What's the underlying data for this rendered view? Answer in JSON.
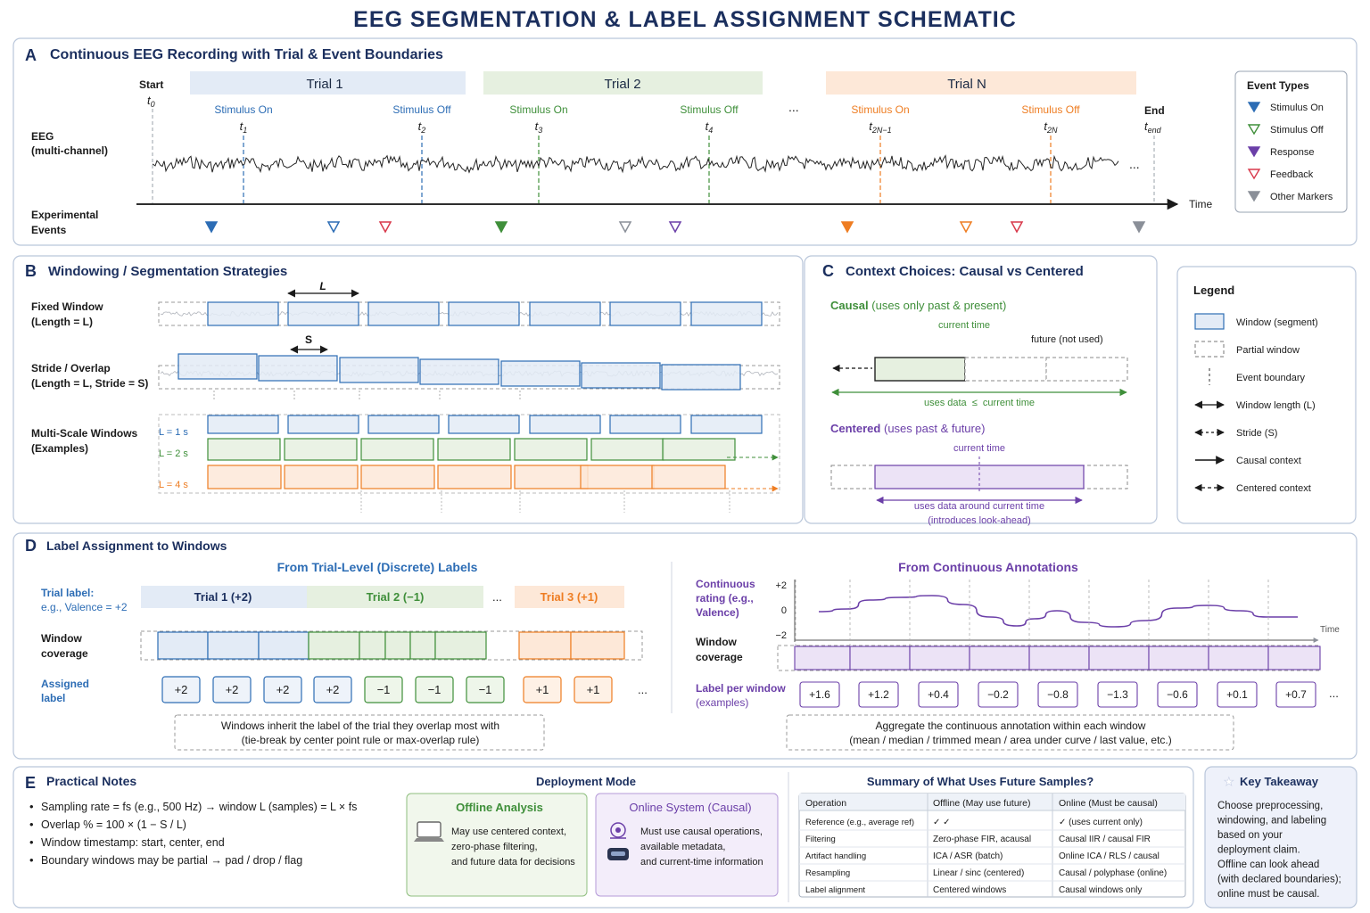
{
  "title": "EEG SEGMENTATION & LABEL ASSIGNMENT SCHEMATIC",
  "colors": {
    "navy": "#1b2f5e",
    "blue": "#2d6db5",
    "green": "#3f8f3a",
    "orange": "#ee7d22",
    "red": "#d8394b",
    "purple": "#6b3fa8",
    "gray": "#8a8f98",
    "trial1_bg": "#e3ebf6",
    "trial2_bg": "#e6f0e0",
    "trialN_bg": "#fde8d8"
  },
  "panelA": {
    "letter": "A",
    "title": "Continuous EEG Recording with Trial & Event Boundaries",
    "start_label": "Start",
    "t0": "t",
    "t0_sub": "0",
    "end_label": "End",
    "tend": "t",
    "tend_sub": "end",
    "eeg_label_1": "EEG",
    "eeg_label_2": "(multi-channel)",
    "events_label_1": "Experimental",
    "events_label_2": "Events",
    "time_label": "Time",
    "dots": "...",
    "trials": [
      "Trial 1",
      "Trial 2",
      "Trial N"
    ],
    "markers": [
      {
        "label": "Stimulus On",
        "t": "t",
        "sub": "1"
      },
      {
        "label": "Stimulus Off",
        "t": "t",
        "sub": "2"
      },
      {
        "label": "Stimulus On",
        "t": "t",
        "sub": "3"
      },
      {
        "label": "Stimulus Off",
        "t": "t",
        "sub": "4"
      },
      {
        "label": "Stimulus On",
        "t": "t",
        "sub": "2N−1"
      },
      {
        "label": "Stimulus Off",
        "t": "t",
        "sub": "2N"
      }
    ],
    "event_types_title": "Event Types",
    "event_types": [
      "Stimulus On",
      "Stimulus Off",
      "Response",
      "Feedback",
      "Other Markers"
    ]
  },
  "panelB": {
    "letter": "B",
    "title": "Windowing / Segmentation Strategies",
    "row1_1": "Fixed Window",
    "row1_2": "(Length = L)",
    "row2_1": "Stride / Overlap",
    "row2_2": "(Length = L, Stride = S)",
    "row3_1": "Multi-Scale Windows",
    "row3_2": "(Examples)",
    "L": "L",
    "S": "S",
    "scales": [
      "L = 1 s",
      "L = 2 s",
      "L = 4 s"
    ]
  },
  "panelC": {
    "letter": "C",
    "title": "Context Choices: Causal vs Centered",
    "causal_title": "Causal",
    "causal_sub": "(uses only past & present)",
    "current_time": "current time",
    "future_not_used": "future (not used)",
    "causal_caption": "uses data  ≤  current time",
    "centered_title": "Centered",
    "centered_sub": "(uses past & future)",
    "centered_caption_1": "uses data around current time",
    "centered_caption_2": "(introduces look-ahead)"
  },
  "legend": {
    "title": "Legend",
    "items": [
      "Window (segment)",
      "Partial window",
      "Event boundary",
      "Window length (L)",
      "Stride (S)",
      "Causal context",
      "Centered context"
    ]
  },
  "panelD": {
    "letter": "D",
    "title": "Label Assignment to Windows",
    "left_title": "From Trial-Level (Discrete) Labels",
    "trial_label_1": "Trial label:",
    "trial_label_2": "e.g., Valence = +2",
    "window_cov_1": "Window",
    "window_cov_2": "coverage",
    "assigned_1": "Assigned",
    "assigned_2": "label",
    "trials": [
      "Trial 1 (+2)",
      "Trial 2 (−1)",
      "Trial 3 (+1)"
    ],
    "dots": "...",
    "assigned_values": [
      "+2",
      "+2",
      "+2",
      "+2",
      "−1",
      "−1",
      "−1",
      "+1",
      "+1"
    ],
    "left_note_1": "Windows inherit the label of the trial they overlap most with",
    "left_note_2": "(tie-break by center point rule or max-overlap rule)",
    "right_title": "From Continuous Annotations",
    "cont_1": "Continuous",
    "cont_2": "rating (e.g.,",
    "cont_3": "Valence)",
    "yticks": [
      "+2",
      "0",
      "−2"
    ],
    "time_label": "Time",
    "label_per_1": "Label per window",
    "label_per_2": "(examples)",
    "window_values": [
      "+1.6",
      "+1.2",
      "+0.4",
      "−0.2",
      "−0.8",
      "−1.3",
      "−0.6",
      "+0.1",
      "+0.7"
    ],
    "right_note_1": "Aggregate the continuous annotation within each window",
    "right_note_2": "(mean / median / trimmed mean / area under curve / last value, etc.)"
  },
  "panelE": {
    "letter": "E",
    "title": "Practical Notes",
    "notes": [
      "Sampling rate = fs (e.g., 500 Hz) → window L (samples) = L × fs",
      "Overlap % = 100 × (1 − S / L)",
      "Window timestamp: start, center, end",
      "Boundary windows may be partial → pad / drop / flag"
    ],
    "deployment_title": "Deployment Mode",
    "offline_title": "Offline Analysis",
    "offline_lines": [
      "May use centered context,",
      "zero-phase filtering,",
      "and future data for decisions"
    ],
    "online_title": "Online System (Causal)",
    "online_lines": [
      "Must use causal operations,",
      "available metadata,",
      "and current-time information"
    ],
    "summary_title": "Summary of What Uses Future Samples?",
    "table_headers": [
      "Operation",
      "Offline (May use future)",
      "Online (Must be causal)"
    ],
    "table_rows": [
      [
        "Reference (e.g., average ref)",
        "✓          ✓",
        "✓  (uses current only)"
      ],
      [
        "Filtering",
        "Zero-phase FIR, acausal",
        "Causal IIR / causal FIR"
      ],
      [
        "Artifact handling",
        "ICA / ASR (batch)",
        "Online ICA / RLS / causal"
      ],
      [
        "Resampling",
        "Linear / sinc (centered)",
        "Causal / polyphase (online)"
      ],
      [
        "Label alignment",
        "Centered windows",
        "Causal windows only"
      ]
    ],
    "takeaway_title": "Key Takeaway",
    "takeaway_lines": [
      "Choose preprocessing,",
      "windowing, and labeling",
      "based on your",
      "deployment claim.",
      "Offline can look ahead",
      "(with declared boundaries);",
      "online must be causal."
    ]
  }
}
